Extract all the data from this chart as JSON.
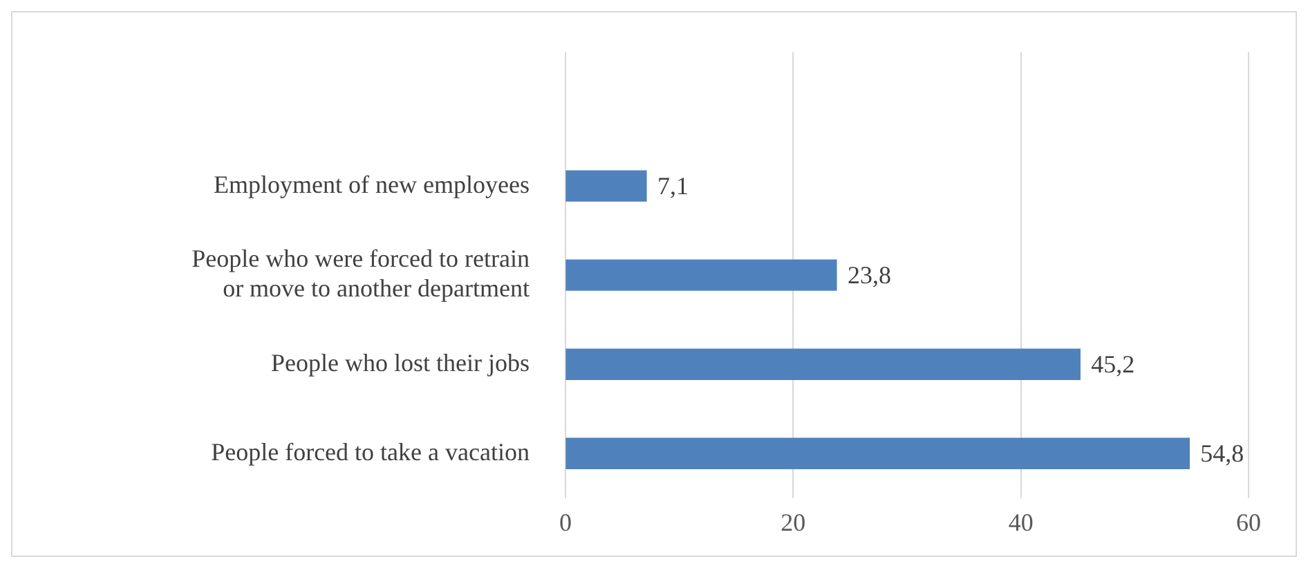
{
  "chart_data": {
    "type": "bar",
    "orientation": "horizontal",
    "categories": [
      null,
      "Employment of new employees",
      "People who were forced to retrain\nor move to another department",
      "People who lost their jobs",
      "People forced to take a vacation"
    ],
    "values": [
      null,
      7.1,
      23.8,
      45.2,
      54.8
    ],
    "value_labels": [
      null,
      "7,1",
      "23,8",
      "45,2",
      "54,8"
    ],
    "color": "#4f81bd",
    "xlim": [
      0,
      60
    ],
    "xticks": [
      0,
      20,
      40,
      60
    ],
    "grid": "x",
    "legend": false
  }
}
